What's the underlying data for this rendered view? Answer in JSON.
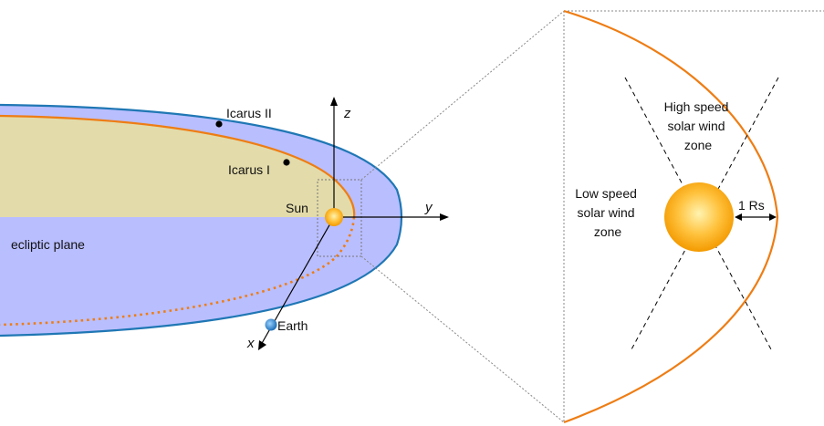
{
  "labels": {
    "icarus_2": "Icarus II",
    "icarus_1": "Icarus I",
    "sun": "Sun",
    "ecliptic_plane": "ecliptic plane",
    "earth": "Earth",
    "axis_x": "x",
    "axis_y": "y",
    "axis_z": "z"
  },
  "zoom_panel": {
    "high_speed_zone": [
      "High speed",
      "solar wind",
      "zone"
    ],
    "low_speed_zone": [
      "Low speed",
      "solar wind",
      "zone"
    ],
    "distance_label": "1 Rs"
  },
  "colors": {
    "orbit_outer": "#1f77b4",
    "orbit_inner": "#ee7d14",
    "outer_fill": "#b9beff",
    "inner_fill": "#e3dbaa",
    "sun_core": "#ffd36a",
    "sun_edge": "#f5a200",
    "earth": "#2a8fd6"
  }
}
